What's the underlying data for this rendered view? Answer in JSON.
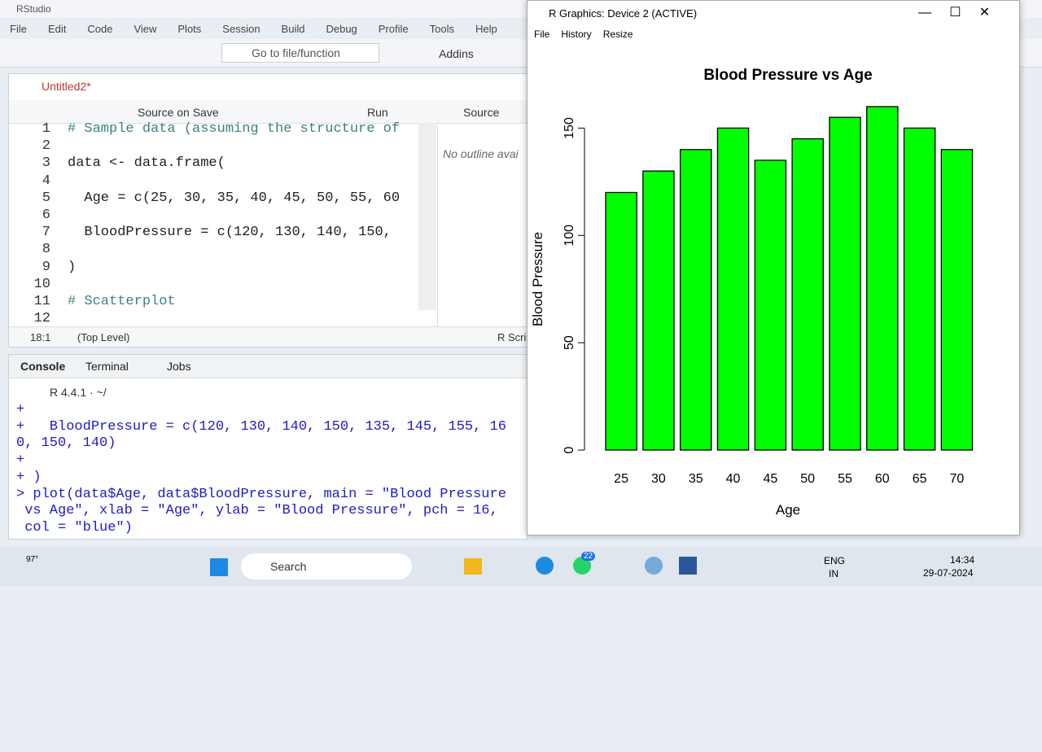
{
  "rstudio": {
    "title": "RStudio",
    "menu": [
      "File",
      "Edit",
      "Code",
      "View",
      "Plots",
      "Session",
      "Build",
      "Debug",
      "Profile",
      "Tools",
      "Help"
    ],
    "toolbar": {
      "goto": "Go to file/function",
      "addins": "Addins"
    },
    "editor": {
      "tab": "Untitled2*",
      "source_on_save": "Source on Save",
      "run": "Run",
      "source": "Source",
      "line_numbers": [
        1,
        2,
        3,
        4,
        5,
        6,
        7,
        8,
        9,
        10,
        11,
        12
      ],
      "code": [
        {
          "line": 1,
          "text": "# Sample data (assuming the structure of"
        },
        {
          "line": 3,
          "text": "data <- data.frame("
        },
        {
          "line": 5,
          "text": "  Age = c(25, 30, 35, 40, 45, 50, 55, 60"
        },
        {
          "line": 7,
          "text": "  BloodPressure = c(120, 130, 140, 150, "
        },
        {
          "line": 9,
          "text": ")"
        },
        {
          "line": 11,
          "text": "# Scatterplot"
        }
      ],
      "outline": "No outline avai",
      "position": "18:1",
      "scope": "(Top Level)",
      "file_type": "R Scri"
    },
    "console": {
      "tabs": [
        "Console",
        "Terminal",
        "Jobs"
      ],
      "version": "R 4.4.1 · ~/",
      "lines": [
        "+",
        "+   BloodPressure = c(120, 130, 140, 150, 135, 145, 155, 16",
        "0, 150, 140)",
        "+",
        "+ )",
        "> plot(data$Age, data$BloodPressure, main = \"Blood Pressure",
        " vs Age\", xlab = \"Age\", ylab = \"Blood Pressure\", pch = 16,",
        " col = \"blue\")"
      ]
    }
  },
  "graphics_window": {
    "title": "R Graphics: Device 2 (ACTIVE)",
    "menu": [
      "File",
      "History",
      "Resize"
    ]
  },
  "chart_data": {
    "type": "bar",
    "title": "Blood Pressure vs Age",
    "x_label": "Age",
    "y_label": "Blood Pressure",
    "categories": [
      "25",
      "30",
      "35",
      "40",
      "45",
      "50",
      "55",
      "60",
      "65",
      "70"
    ],
    "values": [
      120,
      130,
      140,
      150,
      135,
      145,
      155,
      160,
      150,
      140
    ],
    "color": "#00ff00",
    "ylim": [
      0,
      160
    ],
    "yticks": [
      0,
      50,
      100,
      150
    ]
  },
  "taskbar": {
    "weather": "97°",
    "search": "Search",
    "badge": "22",
    "language": "ENG",
    "region": "IN",
    "time": "14:34",
    "date": "29-07-2024"
  }
}
